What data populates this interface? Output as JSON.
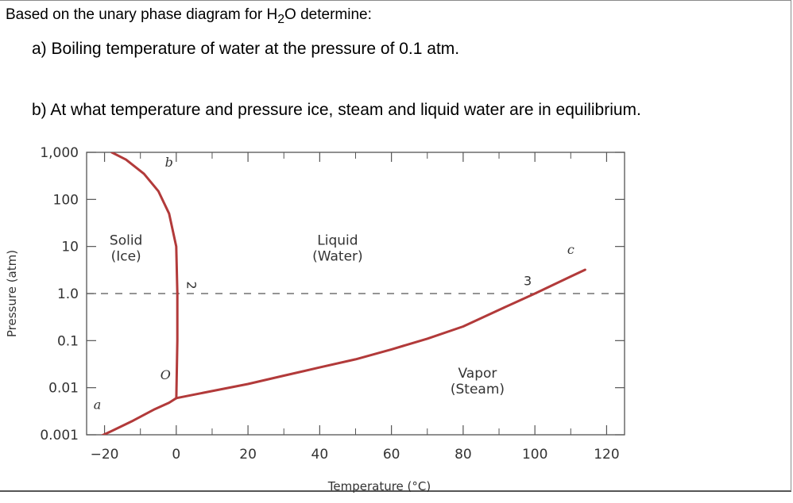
{
  "question": {
    "prompt_prefix": "Based on the unary phase diagram for H",
    "prompt_sub": "2",
    "prompt_suffix": "O determine:",
    "part_a": "a)  Boiling temperature of water at the pressure of 0.1 atm.",
    "part_b": "b)  At what temperature and pressure ice, steam and liquid water are in equilibrium."
  },
  "chart_data": {
    "type": "line",
    "title": "",
    "xlabel": "Temperature (°C)",
    "ylabel": "Pressure (atm)",
    "xlim": [
      -25,
      125
    ],
    "ylim": [
      0.001,
      1000
    ],
    "yscale": "log",
    "x_ticks": [
      -20,
      0,
      20,
      40,
      60,
      80,
      100,
      120
    ],
    "x_tick_labels": [
      "−20",
      "0",
      "20",
      "40",
      "60",
      "80",
      "100",
      "120"
    ],
    "y_ticks": [
      0.001,
      0.01,
      0.1,
      1,
      10,
      100,
      1000
    ],
    "y_tick_labels": [
      "0.001",
      "0.01",
      "0.1",
      "1.0",
      "10",
      "100",
      "1,000"
    ],
    "grid": false,
    "series": [
      {
        "name": "",
        "x": [
          -23,
          -18,
          -12,
          -6,
          -2,
          0.01
        ],
        "y": [
          0.0008,
          0.0012,
          0.002,
          0.0035,
          0.0048,
          0.006
        ]
      },
      {
        "name": "",
        "x": [
          0.01,
          0.3,
          0.3,
          0,
          -2,
          -5,
          -9,
          -14,
          -18
        ],
        "y": [
          0.006,
          0.1,
          1,
          10,
          50,
          150,
          350,
          700,
          1000
        ]
      },
      {
        "name": "",
        "x": [
          0.01,
          10,
          20,
          30,
          40,
          50,
          60,
          70,
          80,
          90,
          100,
          110,
          114
        ],
        "y": [
          0.006,
          0.0085,
          0.012,
          0.018,
          0.027,
          0.04,
          0.065,
          0.11,
          0.2,
          0.45,
          1.0,
          2.3,
          3.2
        ]
      }
    ],
    "reference_line": {
      "y": 1.0,
      "style": "dashed"
    },
    "region_labels": [
      {
        "line1": "Solid",
        "line2": "(Ice)",
        "x": -14,
        "y": 10
      },
      {
        "line1": "Liquid",
        "line2": "(Water)",
        "x": 45,
        "y": 10
      },
      {
        "line1": "Vapor",
        "line2": "(Steam)",
        "x": 84,
        "y": 0.015
      }
    ],
    "point_labels": [
      {
        "text": "a",
        "x": -22,
        "y": 0.0035,
        "italic": true
      },
      {
        "text": "b",
        "x": -2,
        "y": 500,
        "italic": true
      },
      {
        "text": "c",
        "x": 110,
        "y": 7,
        "italic": true
      },
      {
        "text": "O",
        "x": -3,
        "y": 0.015,
        "italic": true
      },
      {
        "text": "2",
        "x": 3,
        "y": 1.5,
        "italic": false,
        "rotated": true
      },
      {
        "text": "3",
        "x": 98,
        "y": 1.5,
        "italic": false
      }
    ]
  }
}
